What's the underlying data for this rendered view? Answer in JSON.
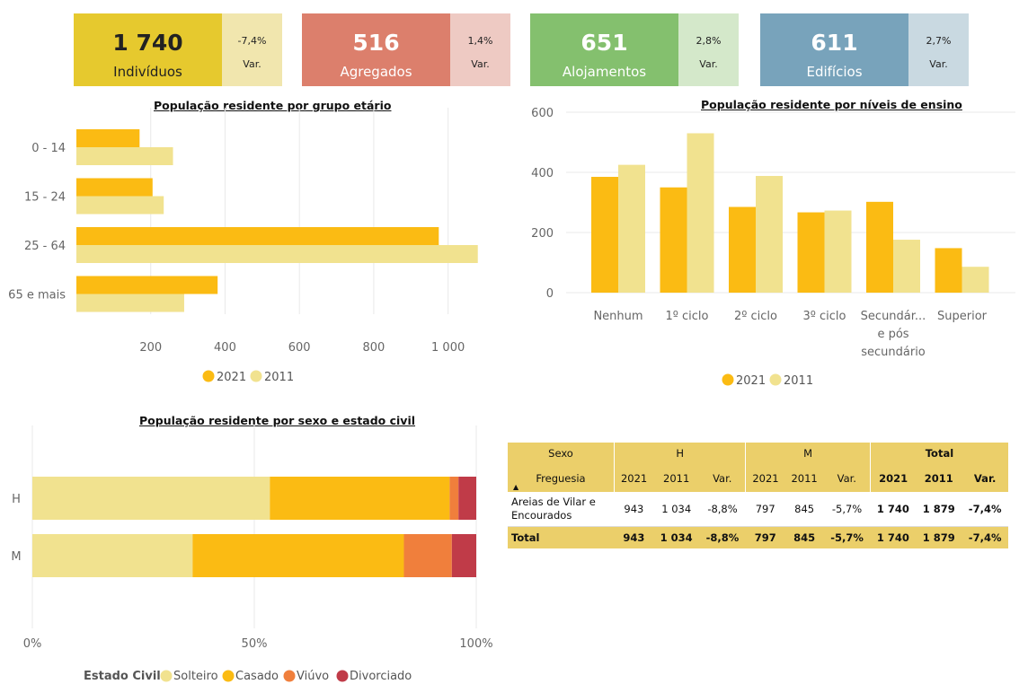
{
  "kpis": [
    {
      "value": "1 740",
      "label": "Indivíduos",
      "var": "-7,4%",
      "var_label": "Var.",
      "color": "#e6c92e",
      "var_color": "#f1e6ae"
    },
    {
      "value": "516",
      "label": "Agregados",
      "var": "1,4%",
      "var_label": "Var.",
      "color": "#dc7f6c",
      "var_color": "#eecac3"
    },
    {
      "value": "651",
      "label": "Alojamentos",
      "var": "2,8%",
      "var_label": "Var.",
      "color": "#84c06e",
      "var_color": "#d4e8ca"
    },
    {
      "value": "611",
      "label": "Edifícios",
      "var": "2,7%",
      "var_label": "Var.",
      "color": "#78a3bb",
      "var_color": "#c9d9e1"
    }
  ],
  "colors": {
    "y2021": "#fbbb13",
    "y2011": "#f1e28f",
    "solteiro": "#f1e28f",
    "casado": "#fbbb13",
    "viuvo": "#f07f3c",
    "divorciado": "#c03b48"
  },
  "chart_data": [
    {
      "type": "bar",
      "orientation": "horizontal",
      "title": "População residente por grupo etário",
      "categories": [
        "0 - 14",
        "15 - 24",
        "25 - 64",
        "65 e mais"
      ],
      "series": [
        {
          "name": "2021",
          "values": [
            170,
            205,
            975,
            380
          ]
        },
        {
          "name": "2011",
          "values": [
            260,
            235,
            1080,
            290
          ]
        }
      ],
      "xlim": [
        0,
        1100
      ],
      "x_ticks": [
        "200",
        "400",
        "600",
        "800",
        "1 000"
      ],
      "legend": "bottom",
      "grid": true
    },
    {
      "type": "bar",
      "title": "População residente por níveis de ensino",
      "categories": [
        "Nenhum",
        "1º ciclo",
        "2º ciclo",
        "3º ciclo",
        "Secundár... e pós secundário",
        "Superior"
      ],
      "category_label_lines": [
        [
          "Nenhum"
        ],
        [
          "1º ciclo"
        ],
        [
          "2º ciclo"
        ],
        [
          "3º ciclo"
        ],
        [
          "Secundár...",
          "e pós",
          "secundário"
        ],
        [
          "Superior"
        ]
      ],
      "series": [
        {
          "name": "2021",
          "values": [
            385,
            350,
            285,
            267,
            302,
            148
          ]
        },
        {
          "name": "2011",
          "values": [
            425,
            530,
            388,
            273,
            176,
            86
          ]
        }
      ],
      "ylim": [
        0,
        600
      ],
      "y_ticks": [
        "0",
        "200",
        "400",
        "600"
      ],
      "legend": "bottom",
      "grid": true
    },
    {
      "type": "bar",
      "stacked": "percent",
      "orientation": "horizontal",
      "title": "População residente por sexo e estado civil",
      "categories": [
        "H",
        "M"
      ],
      "legend_title": "Estado Civil",
      "series": [
        {
          "name": "Solteiro",
          "values": [
            53.5,
            36.1
          ]
        },
        {
          "name": "Casado",
          "values": [
            40.5,
            47.6
          ]
        },
        {
          "name": "Viúvo",
          "values": [
            2.0,
            10.8
          ]
        },
        {
          "name": "Divorciado",
          "values": [
            4.0,
            5.5
          ]
        }
      ],
      "xlim": [
        0,
        100
      ],
      "x_ticks": [
        "0%",
        "50%",
        "100%"
      ],
      "legend": "bottom",
      "grid": true
    }
  ],
  "table": {
    "sexo_label": "Sexo",
    "freguesia_label": "Freguesia",
    "sort_icon": "▲",
    "groups": [
      "H",
      "M",
      "Total"
    ],
    "subheaders": [
      "2021",
      "2011",
      "Var.",
      "2021",
      "2011",
      "Var.",
      "2021",
      "2011",
      "Var."
    ],
    "rows": [
      {
        "name_line1": "Areias de Vilar e",
        "name_line2": "Encourados",
        "values": [
          "943",
          "1 034",
          "-8,8%",
          "797",
          "845",
          "-5,7%",
          "1 740",
          "1 879",
          "-7,4%"
        ]
      }
    ],
    "total": {
      "label": "Total",
      "values": [
        "943",
        "1 034",
        "-8,8%",
        "797",
        "845",
        "-5,7%",
        "1 740",
        "1 879",
        "-7,4%"
      ]
    }
  }
}
